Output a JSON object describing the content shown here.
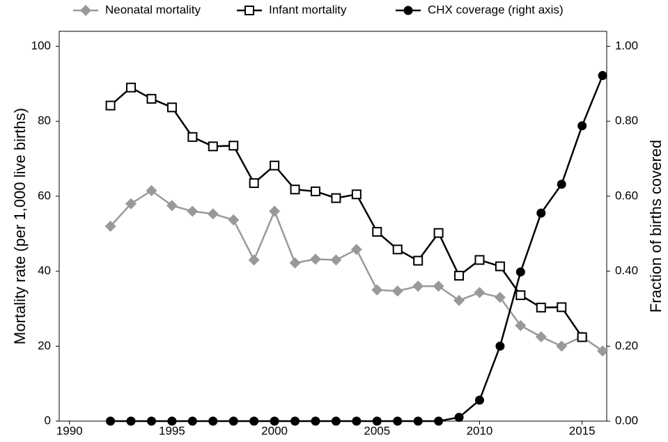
{
  "chart_data": {
    "type": "line",
    "ylabel": "Mortality rate (per 1,000 live births)",
    "y2label": "Fraction of births covered",
    "x": [
      1992,
      1993,
      1994,
      1995,
      1996,
      1997,
      1998,
      1999,
      2000,
      2001,
      2002,
      2003,
      2004,
      2005,
      2006,
      2007,
      2008,
      2009,
      2010,
      2011,
      2012,
      2013,
      2014,
      2015,
      2016
    ],
    "series": [
      {
        "name": "Neonatal mortality",
        "color": "#999999",
        "marker": "diamond",
        "axis": "y",
        "values": [
          52,
          58,
          61.5,
          57.5,
          56,
          55.3,
          53.7,
          43,
          56,
          42.2,
          43.2,
          43,
          45.8,
          35,
          34.7,
          36,
          36,
          32.2,
          34.3,
          33,
          25.5,
          22.5,
          20,
          22.5,
          18.7
        ]
      },
      {
        "name": "Infant mortality",
        "color": "#000000",
        "marker": "square",
        "axis": "y",
        "values": [
          84.2,
          89,
          86,
          83.7,
          75.8,
          73.3,
          73.5,
          63.5,
          68.2,
          61.8,
          61.3,
          59.5,
          60.5,
          50.5,
          45.8,
          42.8,
          50.2,
          38.8,
          43,
          41.3,
          33.6,
          30.3,
          30.4,
          22.4,
          null
        ]
      },
      {
        "name": "CHX coverage (right axis)",
        "color": "#000000",
        "marker": "circle",
        "axis": "y2",
        "values": [
          0,
          0,
          0,
          0,
          0,
          0,
          0,
          0,
          0,
          0,
          0,
          0,
          0,
          0,
          0,
          0,
          0,
          0.01,
          0.056,
          0.2,
          0.398,
          0.555,
          0.632,
          0.788,
          0.922
        ]
      }
    ],
    "xlim": [
      1989.5,
      2016.2
    ],
    "xticks": [
      1990,
      1995,
      2000,
      2005,
      2010,
      2015
    ],
    "ylim": [
      0,
      104
    ],
    "yticks": [
      0,
      20,
      40,
      60,
      80,
      100
    ],
    "y2lim": [
      0,
      1.04
    ],
    "y2ticks": [
      {
        "value": 0,
        "label": "0.00"
      },
      {
        "value": 0.2,
        "label": "0.20"
      },
      {
        "value": 0.4,
        "label": "0.40"
      },
      {
        "value": 0.6,
        "label": "0.60"
      },
      {
        "value": 0.8,
        "label": "0.80"
      },
      {
        "value": 1,
        "label": "1.00"
      }
    ],
    "legend": "top"
  }
}
